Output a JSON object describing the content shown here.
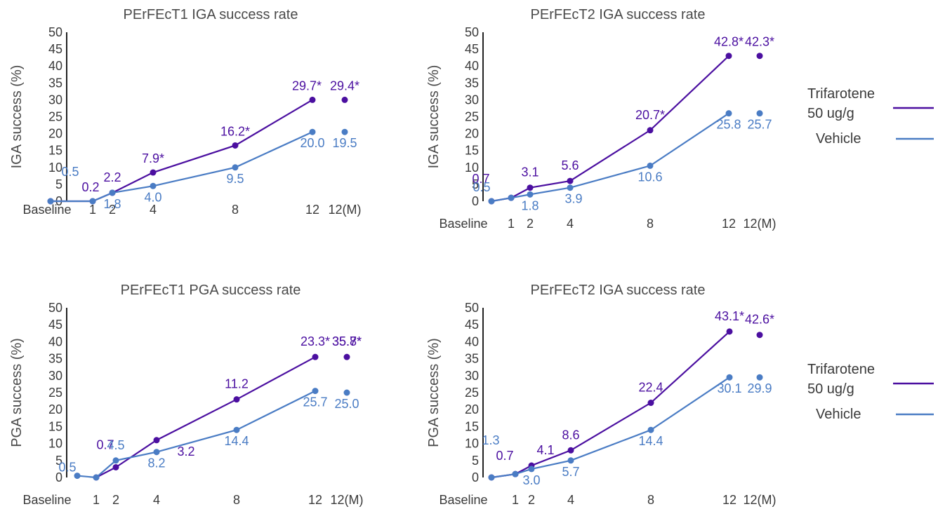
{
  "colors": {
    "trifarotene": "#4b0fa0",
    "vehicle": "#4a7cc4",
    "axis": "#222222",
    "text": "#4a4a4a"
  },
  "chart_data": [
    {
      "type": "line",
      "title": "PErFEcT1 IGA success rate",
      "ylabel": "IGA success (%)",
      "xlabel": "",
      "ylim": [
        0,
        50
      ],
      "yticks": [
        "0",
        "5",
        "10",
        "15",
        "20",
        "25",
        "30",
        "35",
        "40",
        "45",
        "50"
      ],
      "x_ticks": [
        "Baseline",
        "1",
        "2",
        "4",
        "8",
        "12",
        "12(M)"
      ],
      "series": [
        {
          "name": "Trifarotene 50 ug/g",
          "x": [
            "Baseline",
            "1",
            "2",
            "4",
            "8",
            "12",
            "12(M)"
          ],
          "values": [
            0,
            0,
            2.5,
            8.5,
            16.5,
            30.0,
            30.0
          ],
          "labels": [
            "0.2",
            "2.2",
            "7.9*",
            "16.2*",
            "29.7*",
            "29.4*"
          ]
        },
        {
          "name": "Vehicle",
          "x": [
            "Baseline",
            "1",
            "2",
            "4",
            "8",
            "12",
            "12(M)"
          ],
          "values": [
            0,
            0,
            2.5,
            4.5,
            10.0,
            20.5,
            20.5
          ],
          "labels": [
            "0.5",
            "1.8",
            "4.0",
            "9.5",
            "20.0",
            "19.5"
          ]
        }
      ]
    },
    {
      "type": "line",
      "title": "PErFEcT2 IGA success rate",
      "ylabel": "IGA success (%)",
      "xlabel": "",
      "ylim": [
        0,
        50
      ],
      "yticks": [
        "0",
        "5",
        "10",
        "15",
        "20",
        "25",
        "30",
        "35",
        "40",
        "45",
        "50"
      ],
      "x_ticks": [
        "Baseline",
        "1",
        "2",
        "4",
        "8",
        "12",
        "12(M)"
      ],
      "series": [
        {
          "name": "Trifarotene 50 ug/g",
          "x": [
            "Baseline",
            "1",
            "2",
            "4",
            "8",
            "12",
            "12(M)"
          ],
          "values": [
            0,
            1.0,
            4.0,
            6.0,
            21.0,
            43.0,
            43.0
          ],
          "labels": [
            "0.7",
            "3.1",
            "5.6",
            "20.7*",
            "42.8*",
            "42.3*"
          ]
        },
        {
          "name": "Vehicle",
          "x": [
            "Baseline",
            "1",
            "2",
            "4",
            "8",
            "12",
            "12(M)"
          ],
          "values": [
            0,
            1.0,
            2.0,
            4.0,
            10.5,
            26.0,
            26.0
          ],
          "labels": [
            "0.5",
            "1.8",
            "3.9",
            "10.6",
            "25.8",
            "25.7"
          ]
        }
      ],
      "legend": [
        "Trifarotene",
        "50 ug/g",
        "Vehicle"
      ]
    },
    {
      "type": "line",
      "title": "PErFEcT1 PGA success rate",
      "ylabel": "PGA success (%)",
      "xlabel": "",
      "ylim": [
        0,
        50
      ],
      "yticks": [
        "0",
        "5",
        "10",
        "15",
        "20",
        "25",
        "30",
        "35",
        "40",
        "45",
        "50"
      ],
      "x_ticks": [
        "Baseline",
        "1",
        "2",
        "4",
        "8",
        "12",
        "12(M)"
      ],
      "series": [
        {
          "name": "Trifarotene 50 ug/g",
          "x": [
            "1",
            "2",
            "4",
            "8",
            "12",
            "12(M)"
          ],
          "values": [
            0,
            3.0,
            11.0,
            23.0,
            35.5,
            35.5
          ],
          "labels": [
            "0.7",
            "3.2",
            "11.2",
            "23.3*",
            "35.8*",
            "35.7*"
          ]
        },
        {
          "name": "Vehicle",
          "x": [
            "Baseline",
            "1",
            "2",
            "4",
            "8",
            "12",
            "12(M)"
          ],
          "values": [
            0.5,
            0,
            5.0,
            7.5,
            14.0,
            25.5,
            25.0
          ],
          "labels": [
            "0.5",
            "4.5",
            "8.2",
            "14.4",
            "25.7",
            "25.0"
          ]
        }
      ]
    },
    {
      "type": "line",
      "title": "PErFEcT2 IGA success rate",
      "ylabel": "PGA success (%)",
      "xlabel": "",
      "ylim": [
        0,
        50
      ],
      "yticks": [
        "0",
        "5",
        "10",
        "15",
        "20",
        "25",
        "30",
        "35",
        "40",
        "45",
        "50"
      ],
      "x_ticks": [
        "Baseline",
        "1",
        "2",
        "4",
        "8",
        "12",
        "12(M)"
      ],
      "series": [
        {
          "name": "Trifarotene 50 ug/g",
          "x": [
            "Baseline",
            "1",
            "2",
            "4",
            "8",
            "12",
            "12(M)"
          ],
          "values": [
            0,
            1.0,
            3.5,
            8.0,
            22.0,
            43.0,
            42.0
          ],
          "labels": [
            "0.7",
            "4.1",
            "8.6",
            "22.4",
            "43.1*",
            "42.6*"
          ]
        },
        {
          "name": "Vehicle",
          "x": [
            "Baseline",
            "1",
            "2",
            "4",
            "8",
            "12",
            "12(M)"
          ],
          "values": [
            0,
            1.0,
            2.5,
            5.0,
            14.0,
            29.5,
            29.5
          ],
          "labels": [
            "1.3",
            "3.0",
            "5.7",
            "14.4",
            "30.1",
            "29.9"
          ]
        }
      ],
      "legend": [
        "Trifarotene",
        "50 ug/g",
        "Vehicle"
      ]
    }
  ]
}
